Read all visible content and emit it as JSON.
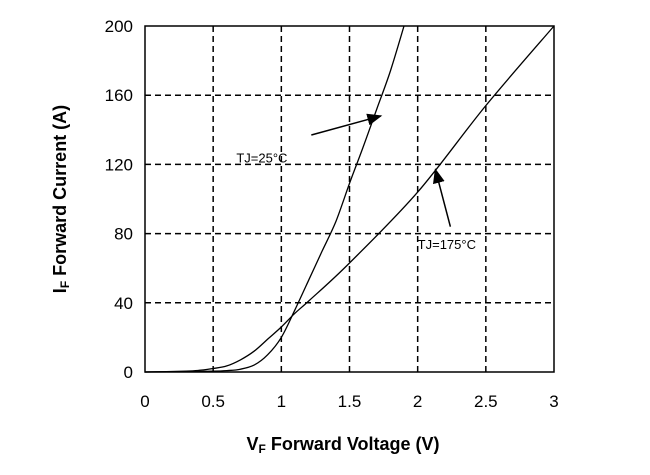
{
  "chart_data": {
    "type": "line",
    "title": "",
    "xlabel": {
      "prefix": "V",
      "sub": "F",
      "rest": " Forward Voltage (V)"
    },
    "ylabel": {
      "prefix": "I",
      "sub": "F",
      "rest": " Forward Current (A)"
    },
    "xlim": [
      0,
      3
    ],
    "ylim": [
      0,
      200
    ],
    "xticks": [
      0,
      0.5,
      1,
      1.5,
      2,
      2.5,
      3
    ],
    "xtick_labels": [
      "0",
      "0.5",
      "1",
      "1.5",
      "2",
      "2.5",
      "3"
    ],
    "yticks": [
      0,
      40,
      80,
      120,
      160,
      200
    ],
    "ytick_labels": [
      "0",
      "40",
      "80",
      "120",
      "160",
      "200"
    ],
    "grid": true,
    "grid_style": "dashed",
    "series": [
      {
        "x": [
          0,
          0.3,
          0.5,
          0.6,
          0.7,
          0.8,
          0.9,
          1.0,
          1.1,
          1.2,
          1.3,
          1.4,
          1.5,
          1.6,
          1.7,
          1.8,
          1.9
        ],
        "y": [
          0,
          0.2,
          0.5,
          0.8,
          1.6,
          4,
          10,
          20,
          36,
          53,
          70,
          87,
          109,
          130,
          152,
          174,
          200
        ]
      },
      {
        "x": [
          0,
          0.3,
          0.4,
          0.5,
          0.6,
          0.7,
          0.8,
          0.9,
          1.0,
          1.1,
          1.2,
          1.5,
          2.0,
          2.5,
          3.0
        ],
        "y": [
          0,
          0.5,
          1,
          2,
          3.5,
          7,
          12,
          19,
          26,
          34,
          41,
          63,
          104,
          154,
          200
        ]
      }
    ],
    "annotations": [
      {
        "text": "TJ=25°C",
        "x": 0.67,
        "y": 121,
        "arrow_from": [
          1.22,
          137
        ],
        "arrow_to": [
          1.73,
          148
        ]
      },
      {
        "text": "TJ=175°C",
        "x": 2.0,
        "y": 71,
        "arrow_from": [
          2.24,
          84
        ],
        "arrow_to": [
          2.13,
          117
        ]
      }
    ]
  }
}
